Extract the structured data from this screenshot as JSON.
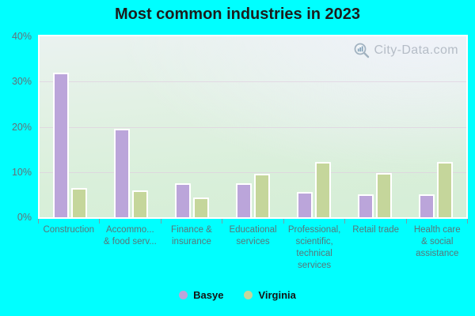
{
  "title": "Most common industries in 2023",
  "watermark": {
    "text": "City-Data.com",
    "icon": "magnifier-bar-chart-icon"
  },
  "colors": {
    "background": "#00FFFF",
    "basye_bar": "#BBA5DA",
    "virginia_bar": "#C5D69B",
    "bar_border": "#FFFFFF",
    "gridline": "#E0CEE0",
    "title_text": "#1C1C1C",
    "x_label_text": "#587579",
    "y_label_text": "#647078",
    "legend_text": "#151515",
    "plot_bg_top": "#EAF2F0",
    "plot_bg_bottom": "#D5EED6"
  },
  "yaxis": {
    "ticks": [
      "40%",
      "30%",
      "20%",
      "10%",
      "0%"
    ]
  },
  "xaxis": {
    "display_labels": [
      [
        "Construction"
      ],
      [
        "Accommo...",
        "& food serv..."
      ],
      [
        "Finance &",
        "insurance"
      ],
      [
        "Educational",
        "services"
      ],
      [
        "Professional,",
        "scientific,",
        "technical",
        "services"
      ],
      [
        "Retail trade"
      ],
      [
        "Health care",
        "& social",
        "assistance"
      ]
    ]
  },
  "legend": [
    {
      "label": "Basye",
      "color": "#BBA5DA"
    },
    {
      "label": "Virginia",
      "color": "#C5D69B"
    }
  ],
  "chart_data": {
    "type": "bar",
    "title": "Most common industries in 2023",
    "categories": [
      "Construction",
      "Accommodation & food services",
      "Finance & insurance",
      "Educational services",
      "Professional, scientific, technical services",
      "Retail trade",
      "Health care & social assistance"
    ],
    "series": [
      {
        "name": "Basye",
        "color": "#BBA5DA",
        "values": [
          32.0,
          19.6,
          7.6,
          7.6,
          5.6,
          5.0,
          5.0
        ]
      },
      {
        "name": "Virginia",
        "color": "#C5D69B",
        "values": [
          6.4,
          5.9,
          4.4,
          9.6,
          12.2,
          9.8,
          12.3
        ]
      }
    ],
    "xlabel": "",
    "ylabel": "",
    "ylim": [
      0,
      40
    ],
    "ytick_step": 10,
    "grid": true,
    "legend_position": "bottom"
  }
}
